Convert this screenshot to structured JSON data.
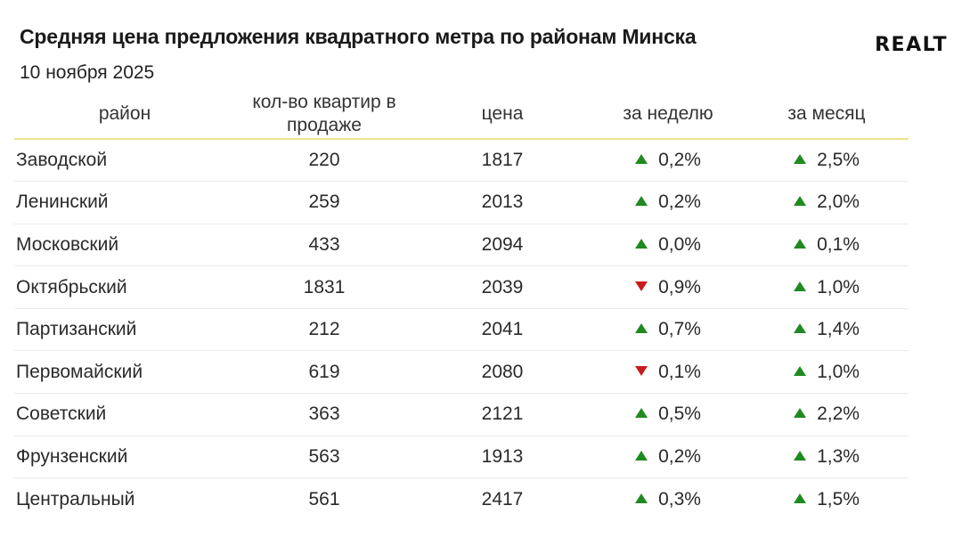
{
  "header": {
    "title": "Средняя цена предложения квадратного метра по районам Минска",
    "date": "10 ноября 2025",
    "logo": "REALT"
  },
  "chart_data": {
    "type": "table",
    "columns": [
      "район",
      "кол-во квартир в продаже",
      "цена",
      "за неделю",
      "за месяц"
    ],
    "colors": {
      "up": "#1f8a1f",
      "down": "#c81d1d",
      "header_rule": "#f1e28c"
    },
    "rows": [
      {
        "district": "Заводской",
        "count": "220",
        "price": "1817",
        "week_dir": "up",
        "week": "0,2%",
        "month_dir": "up",
        "month": "2,5%"
      },
      {
        "district": "Ленинский",
        "count": "259",
        "price": "2013",
        "week_dir": "up",
        "week": "0,2%",
        "month_dir": "up",
        "month": "2,0%"
      },
      {
        "district": "Московский",
        "count": "433",
        "price": "2094",
        "week_dir": "up",
        "week": "0,0%",
        "month_dir": "up",
        "month": "0,1%"
      },
      {
        "district": "Октябрьский",
        "count": "1831",
        "price": "2039",
        "week_dir": "down",
        "week": "0,9%",
        "month_dir": "up",
        "month": "1,0%"
      },
      {
        "district": "Партизанский",
        "count": "212",
        "price": "2041",
        "week_dir": "up",
        "week": "0,7%",
        "month_dir": "up",
        "month": "1,4%"
      },
      {
        "district": "Первомайский",
        "count": "619",
        "price": "2080",
        "week_dir": "down",
        "week": "0,1%",
        "month_dir": "up",
        "month": "1,0%"
      },
      {
        "district": "Советский",
        "count": "363",
        "price": "2121",
        "week_dir": "up",
        "week": "0,5%",
        "month_dir": "up",
        "month": "2,2%"
      },
      {
        "district": "Фрунзенский",
        "count": "563",
        "price": "1913",
        "week_dir": "up",
        "week": "0,2%",
        "month_dir": "up",
        "month": "1,3%"
      },
      {
        "district": "Центральный",
        "count": "561",
        "price": "2417",
        "week_dir": "up",
        "week": "0,3%",
        "month_dir": "up",
        "month": "1,5%"
      }
    ]
  }
}
